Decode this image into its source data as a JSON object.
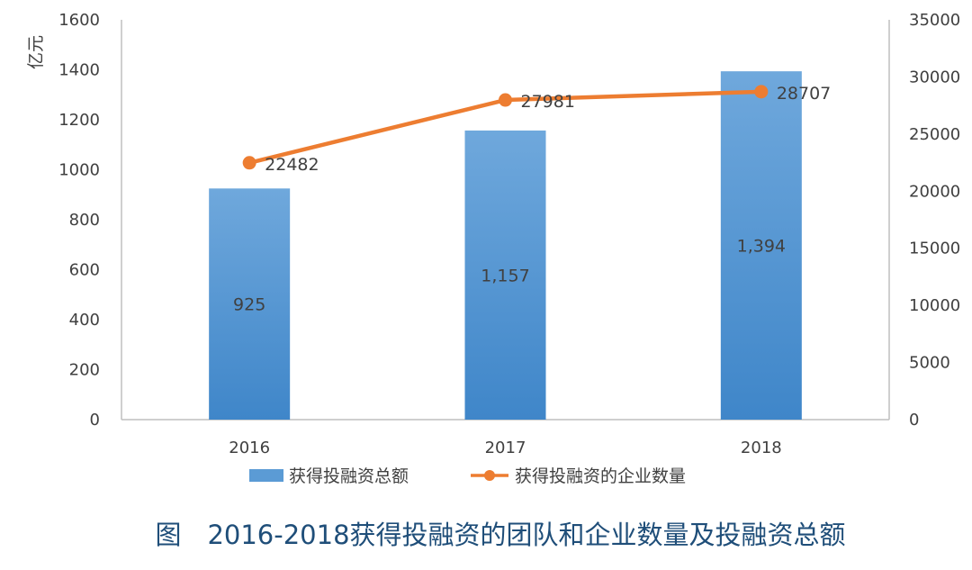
{
  "chart_data": {
    "type": "bar",
    "title": "图　2016-2018获得投融资的团队和企业数量及投融资总额",
    "categories": [
      "2016",
      "2017",
      "2018"
    ],
    "y_left": {
      "label": "亿元",
      "ylim": [
        0,
        1600
      ],
      "ticks": [
        "0",
        "200",
        "400",
        "600",
        "800",
        "1000",
        "1200",
        "1400",
        "1600"
      ]
    },
    "y_right": {
      "ylim": [
        0,
        35000
      ],
      "ticks": [
        "0",
        "5000",
        "10000",
        "15000",
        "20000",
        "25000",
        "30000",
        "35000"
      ]
    },
    "series": [
      {
        "name": "获得投融资总额",
        "type": "bar",
        "axis": "left",
        "values": [
          925,
          1157,
          1394
        ],
        "labels": [
          "925",
          "1,157",
          "1,394"
        ],
        "color": "#5b9bd5"
      },
      {
        "name": "获得投融资的企业数量",
        "type": "line",
        "axis": "right",
        "values": [
          22482,
          27981,
          28707
        ],
        "labels": [
          "22482",
          "27981",
          "28707"
        ],
        "color": "#ed7d31"
      }
    ],
    "grid": false,
    "legend": "bottom"
  }
}
